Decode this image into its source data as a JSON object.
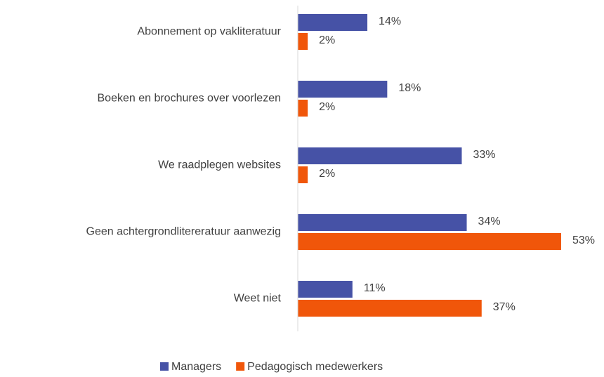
{
  "chart_data": {
    "type": "bar",
    "orientation": "horizontal",
    "categories": [
      "Abonnement op vakliteratuur",
      "Boeken en brochures over voorlezen",
      "We raadplegen websites",
      "Geen achtergrondlitereratuur aanwezig",
      "Weet niet"
    ],
    "series": [
      {
        "name": "Managers",
        "color": "#4652a6",
        "values": [
          14,
          18,
          33,
          34,
          11
        ],
        "value_labels": [
          "14%",
          "18%",
          "33%",
          "34%",
          "11%"
        ]
      },
      {
        "name": "Pedagogisch medewerkers",
        "color": "#f0560a",
        "values": [
          2,
          2,
          2,
          53,
          37
        ],
        "value_labels": [
          "2%",
          "2%",
          "2%",
          "53%",
          "37%"
        ]
      }
    ],
    "xlim": [
      0,
      60
    ],
    "legend": "bottom"
  }
}
